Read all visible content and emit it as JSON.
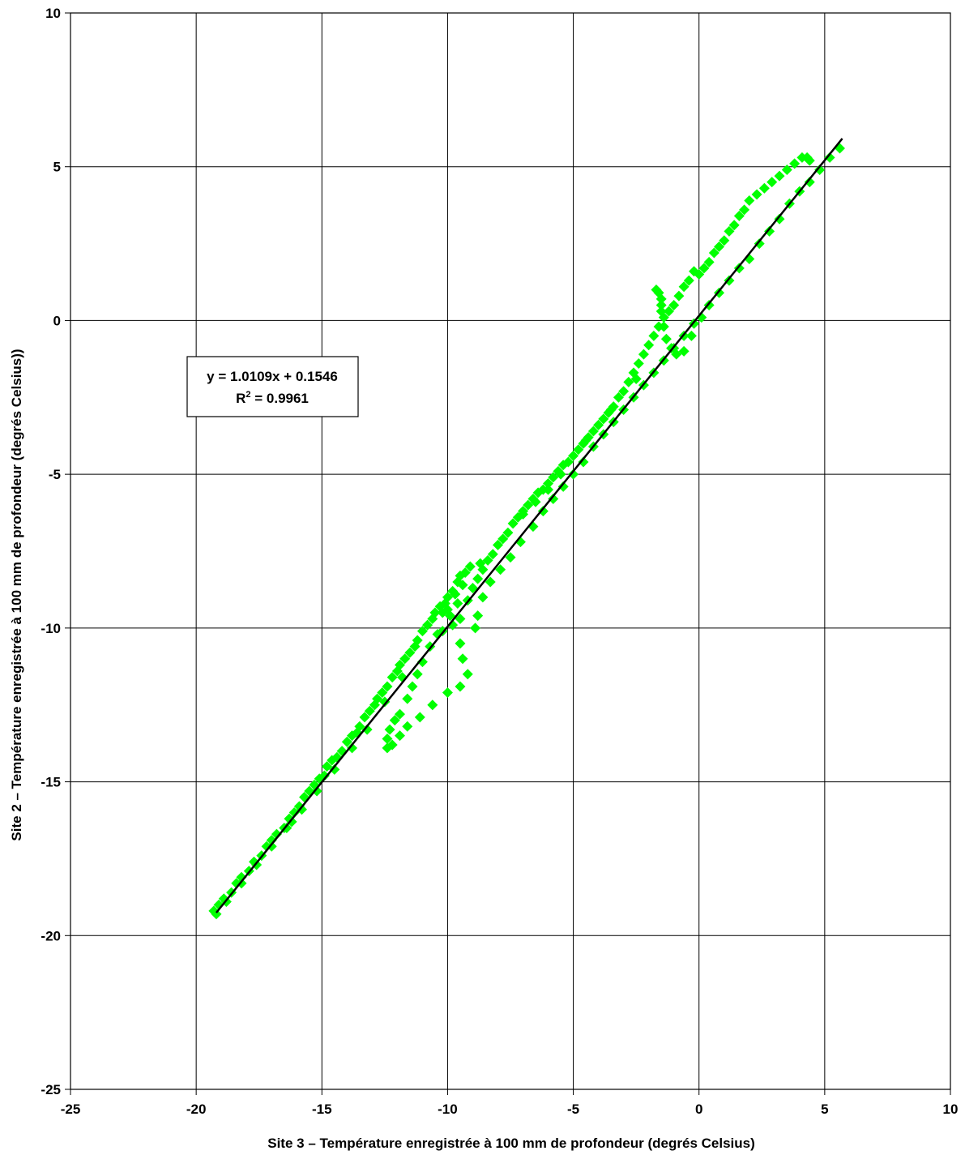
{
  "chart_data": {
    "type": "scatter",
    "title": "",
    "xlabel": "Site 3 – Température enregistrée à 100 mm de profondeur (degrés Celsius)",
    "ylabel": "Site 2 – Température enregistrée à 100 mm de profondeur (degrés Celsius))",
    "xlim": [
      -25,
      10
    ],
    "ylim": [
      -25,
      10
    ],
    "x_ticks": [
      "-25",
      "-20",
      "-15",
      "-10",
      "-5",
      "0",
      "5",
      "10"
    ],
    "y_ticks": [
      "10",
      "5",
      "0",
      "-5",
      "-10",
      "-15",
      "-20",
      "-25"
    ],
    "x_tick_values": [
      -25,
      -20,
      -15,
      -10,
      -5,
      0,
      5,
      10
    ],
    "y_tick_values": [
      10,
      5,
      0,
      -5,
      -10,
      -15,
      -20,
      -25
    ],
    "grid": true,
    "legend": "none",
    "marker": "diamond",
    "series_color": "#00ff00",
    "trendline_color": "#000000",
    "trendline": {
      "slope": 1.0109,
      "intercept": 0.1546,
      "x_range": [
        -19.2,
        5.7
      ]
    },
    "equation": {
      "line1": "y = 1.0109x + 0.1546",
      "r2_prefix": "R",
      "r2_sup": "2",
      "r2_suffix": " = 0.9961"
    },
    "series": [
      {
        "points": [
          [
            -19.3,
            -19.2
          ],
          [
            -19.1,
            -19.0
          ],
          [
            -18.9,
            -18.8
          ],
          [
            -18.6,
            -18.6
          ],
          [
            -18.4,
            -18.3
          ],
          [
            -18.2,
            -18.1
          ],
          [
            -17.9,
            -17.9
          ],
          [
            -17.7,
            -17.6
          ],
          [
            -17.4,
            -17.4
          ],
          [
            -17.2,
            -17.1
          ],
          [
            -17.0,
            -16.9
          ],
          [
            -16.8,
            -16.7
          ],
          [
            -16.5,
            -16.5
          ],
          [
            -16.3,
            -16.2
          ],
          [
            -16.1,
            -16.0
          ],
          [
            -16.2,
            -16.3
          ],
          [
            -15.9,
            -15.8
          ],
          [
            -15.7,
            -15.5
          ],
          [
            -15.5,
            -15.3
          ],
          [
            -15.3,
            -15.1
          ],
          [
            -15.1,
            -14.9
          ],
          [
            -14.9,
            -14.8
          ],
          [
            -14.8,
            -14.5
          ],
          [
            -14.6,
            -14.3
          ],
          [
            -14.4,
            -14.2
          ],
          [
            -14.2,
            -14.0
          ],
          [
            -14.0,
            -13.7
          ],
          [
            -13.8,
            -13.5
          ],
          [
            -13.6,
            -13.4
          ],
          [
            -13.5,
            -13.2
          ],
          [
            -13.3,
            -12.9
          ],
          [
            -13.1,
            -12.7
          ],
          [
            -12.9,
            -12.5
          ],
          [
            -12.8,
            -12.3
          ],
          [
            -12.6,
            -12.1
          ],
          [
            -12.4,
            -11.9
          ],
          [
            -12.2,
            -11.6
          ],
          [
            -12.0,
            -11.4
          ],
          [
            -11.9,
            -11.2
          ],
          [
            -11.7,
            -11.0
          ],
          [
            -11.5,
            -10.8
          ],
          [
            -11.3,
            -10.6
          ],
          [
            -11.2,
            -10.4
          ],
          [
            -11.0,
            -10.1
          ],
          [
            -10.8,
            -9.9
          ],
          [
            -10.6,
            -9.7
          ],
          [
            -10.5,
            -9.5
          ],
          [
            -10.3,
            -9.3
          ],
          [
            -10.1,
            -9.2
          ],
          [
            -10.0,
            -9.0
          ],
          [
            -9.8,
            -8.8
          ],
          [
            -9.6,
            -8.5
          ],
          [
            -9.5,
            -8.3
          ],
          [
            -9.3,
            -8.2
          ],
          [
            -9.1,
            -8.0
          ],
          [
            -9.6,
            -9.2
          ],
          [
            -9.9,
            -9.6
          ],
          [
            -10.2,
            -10.1
          ],
          [
            -10.0,
            -9.4
          ],
          [
            -9.8,
            -9.9
          ],
          [
            -9.5,
            -9.7
          ],
          [
            -9.2,
            -9.1
          ],
          [
            -9.0,
            -8.7
          ],
          [
            -8.8,
            -8.4
          ],
          [
            -8.6,
            -8.1
          ],
          [
            -8.4,
            -7.8
          ],
          [
            -8.2,
            -7.6
          ],
          [
            -8.0,
            -7.3
          ],
          [
            -7.8,
            -7.1
          ],
          [
            -7.6,
            -6.9
          ],
          [
            -7.4,
            -6.6
          ],
          [
            -7.2,
            -6.4
          ],
          [
            -7.0,
            -6.2
          ],
          [
            -6.8,
            -6.0
          ],
          [
            -6.6,
            -5.8
          ],
          [
            -6.4,
            -5.6
          ],
          [
            -6.2,
            -5.5
          ],
          [
            -6.0,
            -5.3
          ],
          [
            -5.8,
            -5.1
          ],
          [
            -5.6,
            -4.9
          ],
          [
            -5.4,
            -4.7
          ],
          [
            -5.2,
            -4.6
          ],
          [
            -5.0,
            -4.4
          ],
          [
            -4.8,
            -4.2
          ],
          [
            -4.6,
            -4.0
          ],
          [
            -4.4,
            -3.8
          ],
          [
            -4.2,
            -3.6
          ],
          [
            -4.0,
            -3.4
          ],
          [
            -3.8,
            -3.2
          ],
          [
            -3.6,
            -3.0
          ],
          [
            -3.4,
            -2.8
          ],
          [
            -3.2,
            -2.5
          ],
          [
            -3.0,
            -2.3
          ],
          [
            -2.8,
            -2.0
          ],
          [
            -2.6,
            -1.7
          ],
          [
            -2.4,
            -1.4
          ],
          [
            -2.2,
            -1.1
          ],
          [
            -2.0,
            -0.8
          ],
          [
            -1.8,
            -0.5
          ],
          [
            -1.6,
            -0.2
          ],
          [
            -1.4,
            0.1
          ],
          [
            -1.2,
            0.3
          ],
          [
            -1.0,
            0.5
          ],
          [
            -0.8,
            0.8
          ],
          [
            -0.6,
            1.1
          ],
          [
            -0.4,
            1.3
          ],
          [
            -0.2,
            1.6
          ],
          [
            0.0,
            1.5
          ],
          [
            0.2,
            1.7
          ],
          [
            0.4,
            1.9
          ],
          [
            0.6,
            2.2
          ],
          [
            0.8,
            2.4
          ],
          [
            1.0,
            2.6
          ],
          [
            1.2,
            2.9
          ],
          [
            1.4,
            3.1
          ],
          [
            1.6,
            3.4
          ],
          [
            1.8,
            3.6
          ],
          [
            2.0,
            3.9
          ],
          [
            2.3,
            4.1
          ],
          [
            2.6,
            4.3
          ],
          [
            2.9,
            4.5
          ],
          [
            3.2,
            4.7
          ],
          [
            3.5,
            4.9
          ],
          [
            3.8,
            5.1
          ],
          [
            4.1,
            5.3
          ],
          [
            4.3,
            5.3
          ],
          [
            4.4,
            5.2
          ],
          [
            -1.7,
            1.0
          ],
          [
            -1.6,
            0.9
          ],
          [
            -1.5,
            0.7
          ],
          [
            -1.5,
            0.5
          ],
          [
            -1.5,
            0.3
          ],
          [
            -1.4,
            -0.2
          ],
          [
            -1.3,
            -0.6
          ],
          [
            -1.1,
            -0.9
          ],
          [
            -0.9,
            -1.1
          ],
          [
            -0.6,
            -1.0
          ],
          [
            -0.3,
            -0.5
          ],
          [
            0.1,
            0.1
          ],
          [
            0.4,
            0.5
          ],
          [
            0.8,
            0.9
          ],
          [
            1.2,
            1.3
          ],
          [
            1.6,
            1.7
          ],
          [
            2.0,
            2.0
          ],
          [
            2.4,
            2.5
          ],
          [
            2.8,
            2.9
          ],
          [
            3.2,
            3.3
          ],
          [
            3.6,
            3.8
          ],
          [
            4.0,
            4.2
          ],
          [
            4.4,
            4.5
          ],
          [
            4.8,
            4.9
          ],
          [
            5.2,
            5.3
          ],
          [
            5.6,
            5.6
          ],
          [
            -9.5,
            -10.5
          ],
          [
            -9.4,
            -11.0
          ],
          [
            -9.2,
            -11.5
          ],
          [
            -9.5,
            -11.9
          ],
          [
            -10.0,
            -12.1
          ],
          [
            -10.6,
            -12.5
          ],
          [
            -11.1,
            -12.9
          ],
          [
            -11.6,
            -13.2
          ],
          [
            -11.9,
            -13.5
          ],
          [
            -12.2,
            -13.8
          ],
          [
            -12.4,
            -13.9
          ],
          [
            -12.4,
            -13.6
          ],
          [
            -12.3,
            -13.3
          ],
          [
            -12.1,
            -13.0
          ],
          [
            -11.9,
            -12.8
          ],
          [
            -11.6,
            -12.3
          ],
          [
            -11.4,
            -11.9
          ],
          [
            -11.2,
            -11.5
          ],
          [
            -11.0,
            -11.1
          ],
          [
            -10.7,
            -10.6
          ],
          [
            -10.4,
            -10.2
          ],
          [
            -8.8,
            -9.6
          ],
          [
            -8.9,
            -10.0
          ],
          [
            -8.6,
            -9.0
          ],
          [
            -8.3,
            -8.5
          ],
          [
            -7.9,
            -8.1
          ],
          [
            -7.5,
            -7.7
          ],
          [
            -7.1,
            -7.2
          ],
          [
            -6.6,
            -6.7
          ],
          [
            -6.2,
            -6.2
          ],
          [
            -5.8,
            -5.8
          ],
          [
            -5.4,
            -5.4
          ],
          [
            -5.0,
            -5.0
          ],
          [
            -4.6,
            -4.6
          ],
          [
            -4.2,
            -4.1
          ],
          [
            -3.8,
            -3.7
          ],
          [
            -3.4,
            -3.3
          ],
          [
            -3.0,
            -2.9
          ],
          [
            -2.6,
            -2.5
          ],
          [
            -2.2,
            -2.1
          ],
          [
            -1.8,
            -1.7
          ],
          [
            -1.4,
            -1.3
          ],
          [
            -1.0,
            -0.9
          ],
          [
            -0.6,
            -0.5
          ],
          [
            -0.2,
            -0.1
          ],
          [
            -7.0,
            -6.3
          ],
          [
            -6.5,
            -5.9
          ],
          [
            -6.0,
            -5.5
          ],
          [
            -5.5,
            -5.0
          ],
          [
            -4.5,
            -3.9
          ],
          [
            -3.5,
            -2.9
          ],
          [
            -2.5,
            -1.9
          ],
          [
            -10.2,
            -9.5
          ],
          [
            -9.7,
            -8.9
          ],
          [
            -9.4,
            -8.6
          ],
          [
            -8.7,
            -7.9
          ],
          [
            -11.8,
            -11.6
          ],
          [
            -12.5,
            -12.4
          ],
          [
            -13.2,
            -13.3
          ],
          [
            -13.8,
            -13.9
          ],
          [
            -14.5,
            -14.6
          ],
          [
            -15.2,
            -15.3
          ],
          [
            -15.8,
            -15.9
          ],
          [
            -16.4,
            -16.5
          ],
          [
            -17.0,
            -17.1
          ],
          [
            -17.6,
            -17.7
          ],
          [
            -18.2,
            -18.3
          ],
          [
            -18.8,
            -18.9
          ],
          [
            -19.2,
            -19.3
          ]
        ]
      }
    ]
  }
}
